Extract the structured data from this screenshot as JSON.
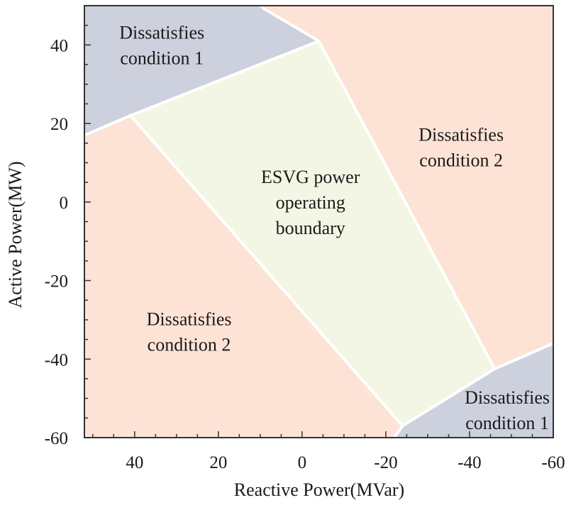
{
  "chart_data": {
    "type": "region",
    "xlabel": "Reactive Power(MVar)",
    "ylabel": "Active Power(MW)",
    "xlim": [
      52,
      -60
    ],
    "ylim": [
      -60,
      50
    ],
    "x_ticks": [
      40,
      20,
      0,
      -20,
      -40,
      -60
    ],
    "y_ticks": [
      40,
      20,
      0,
      -20,
      -40,
      -60
    ],
    "grid": false,
    "colors": {
      "condition1": "#cdd1dd",
      "condition2": "#fce3d6",
      "operating": "#f3f6e4",
      "boundary": "#ffffff",
      "frame": "#333333"
    },
    "regions": [
      {
        "name": "condition1-top-left",
        "label_lines": [
          "Dissatisfies",
          "condition 1"
        ],
        "label_at": [
          33.5,
          40
        ],
        "color_key": "condition1",
        "polygon": [
          [
            52,
            50
          ],
          [
            11,
            50
          ],
          [
            9.5,
            49.5
          ],
          [
            -4,
            41
          ],
          [
            41,
            22
          ],
          [
            52,
            17
          ]
        ]
      },
      {
        "name": "operating-boundary",
        "label_lines": [
          "ESVG power",
          "operating",
          "boundary"
        ],
        "label_at": [
          -2,
          0
        ],
        "color_key": "operating",
        "polygon": [
          [
            41,
            22
          ],
          [
            -4,
            41
          ],
          [
            -46,
            -42.5
          ],
          [
            -24,
            -57
          ]
        ]
      },
      {
        "name": "condition2-top-right",
        "label_lines": [
          "Dissatisfies",
          "condition 2"
        ],
        "label_at": [
          -38,
          14
        ],
        "color_key": "condition2",
        "polygon": [
          [
            -4,
            41
          ],
          [
            9.5,
            49.5
          ],
          [
            9.5,
            50
          ],
          [
            -60,
            50
          ],
          [
            -60,
            -36
          ],
          [
            -46,
            -42.5
          ]
        ]
      },
      {
        "name": "condition2-bottom-left",
        "label_lines": [
          "Dissatisfies",
          "condition 2"
        ],
        "label_at": [
          27,
          -33
        ],
        "color_key": "condition2",
        "polygon": [
          [
            52,
            17
          ],
          [
            41,
            22
          ],
          [
            -24,
            -57
          ],
          [
            -22,
            -60
          ],
          [
            52,
            -60
          ]
        ]
      },
      {
        "name": "condition1-bottom-right",
        "label_lines": [
          "Dissatisfies",
          "condition 1"
        ],
        "label_at": [
          -49,
          -53
        ],
        "color_key": "condition1",
        "polygon": [
          [
            -24,
            -57
          ],
          [
            -46,
            -42.5
          ],
          [
            -60,
            -36
          ],
          [
            -60,
            -60
          ],
          [
            -22,
            -60
          ]
        ]
      }
    ],
    "boundary_lines": [
      [
        [
          52,
          17
        ],
        [
          41,
          22
        ],
        [
          -4,
          41
        ],
        [
          9.5,
          49.5
        ]
      ],
      [
        [
          41,
          22
        ],
        [
          -24,
          -57
        ],
        [
          -22,
          -60
        ]
      ],
      [
        [
          -4,
          41
        ],
        [
          -46,
          -42.5
        ],
        [
          -24,
          -57
        ]
      ],
      [
        [
          -46,
          -42.5
        ],
        [
          -60,
          -36
        ]
      ]
    ]
  }
}
